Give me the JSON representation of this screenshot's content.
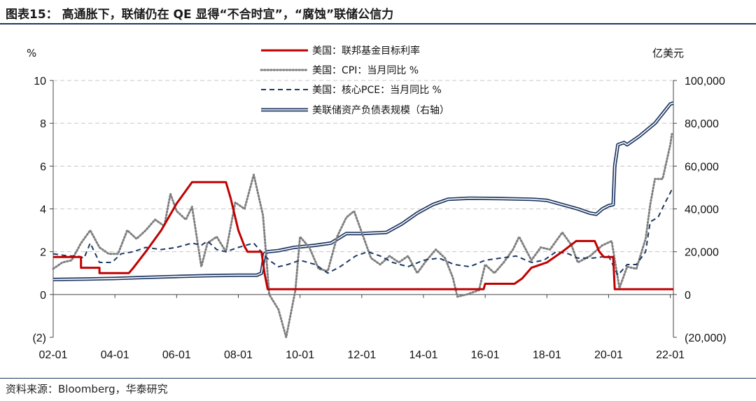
{
  "header": {
    "title": "图表15：   高通胀下，联储仍在 QE 显得“不合时宜”，“腐蚀”联储公信力"
  },
  "footer": {
    "source": "资料来源：Bloomberg，华泰研究"
  },
  "colors": {
    "fed_rate": "#c00000",
    "cpi": "#7f7f7f",
    "core_pce": "#1f3864",
    "balance": "#1f3864",
    "grid": "#c8c8c8"
  },
  "chart_data": {
    "type": "line",
    "title": "高通胀下，联储仍在 QE 显得“不合时宜”，“腐蚀”联储公信力",
    "ylabel_left": "%",
    "ylabel_right": "亿美元",
    "ylim_left": [
      -2,
      10
    ],
    "ylim_right": [
      -20000,
      100000
    ],
    "xlim": [
      2002.0,
      2022.1
    ],
    "x_tick_labels": [
      "02-01",
      "04-01",
      "06-01",
      "08-01",
      "10-01",
      "12-01",
      "14-01",
      "16-01",
      "18-01",
      "20-01",
      "22-01"
    ],
    "x_tick_values": [
      2002,
      2004,
      2006,
      2008,
      2010,
      2012,
      2014,
      2016,
      2018,
      2020,
      2022
    ],
    "y_left_tick_labels": [
      "(2)",
      "0",
      "2",
      "4",
      "6",
      "8",
      "10"
    ],
    "y_left_tick_values": [
      -2,
      0,
      2,
      4,
      6,
      8,
      10
    ],
    "y_right_tick_labels": [
      "(20,000)",
      "0",
      "20,000",
      "40,000",
      "60,000",
      "80,000",
      "100,000"
    ],
    "y_right_tick_values": [
      -20000,
      0,
      20000,
      40000,
      60000,
      80000,
      100000
    ],
    "legend_position": "top-center",
    "series": [
      {
        "name": "美国：联邦基金目标利率",
        "axis": "left",
        "style": "solid",
        "points": [
          [
            2002.0,
            1.75
          ],
          [
            2002.9,
            1.75
          ],
          [
            2002.9,
            1.25
          ],
          [
            2003.5,
            1.25
          ],
          [
            2003.5,
            1.0
          ],
          [
            2004.45,
            1.0
          ],
          [
            2004.6,
            1.25
          ],
          [
            2005.0,
            2.0
          ],
          [
            2005.5,
            3.0
          ],
          [
            2006.0,
            4.25
          ],
          [
            2006.5,
            5.25
          ],
          [
            2007.6,
            5.25
          ],
          [
            2007.75,
            4.5
          ],
          [
            2008.0,
            3.0
          ],
          [
            2008.2,
            2.25
          ],
          [
            2008.3,
            2.0
          ],
          [
            2008.75,
            2.0
          ],
          [
            2008.85,
            1.0
          ],
          [
            2008.95,
            0.25
          ],
          [
            2015.95,
            0.25
          ],
          [
            2016.0,
            0.5
          ],
          [
            2016.95,
            0.5
          ],
          [
            2017.2,
            0.75
          ],
          [
            2017.5,
            1.25
          ],
          [
            2018.0,
            1.5
          ],
          [
            2018.5,
            2.0
          ],
          [
            2018.95,
            2.5
          ],
          [
            2019.55,
            2.5
          ],
          [
            2019.7,
            2.0
          ],
          [
            2019.85,
            1.75
          ],
          [
            2020.15,
            1.75
          ],
          [
            2020.2,
            0.25
          ],
          [
            2022.1,
            0.25
          ]
        ]
      },
      {
        "name": "美国：CPI：当月同比 %",
        "axis": "left",
        "style": "dotted",
        "points": [
          [
            2002.0,
            1.2
          ],
          [
            2002.3,
            1.5
          ],
          [
            2002.6,
            1.6
          ],
          [
            2002.9,
            2.4
          ],
          [
            2003.2,
            3.0
          ],
          [
            2003.5,
            2.2
          ],
          [
            2003.8,
            1.9
          ],
          [
            2004.1,
            1.9
          ],
          [
            2004.4,
            3.0
          ],
          [
            2004.7,
            2.6
          ],
          [
            2005.0,
            3.0
          ],
          [
            2005.3,
            3.5
          ],
          [
            2005.6,
            3.2
          ],
          [
            2005.8,
            4.7
          ],
          [
            2006.0,
            3.9
          ],
          [
            2006.3,
            3.5
          ],
          [
            2006.5,
            4.1
          ],
          [
            2006.8,
            1.3
          ],
          [
            2007.0,
            2.4
          ],
          [
            2007.3,
            2.7
          ],
          [
            2007.6,
            2.0
          ],
          [
            2007.9,
            4.3
          ],
          [
            2008.2,
            4.0
          ],
          [
            2008.5,
            5.6
          ],
          [
            2008.8,
            3.7
          ],
          [
            2009.0,
            0.0
          ],
          [
            2009.3,
            -0.7
          ],
          [
            2009.55,
            -2.0
          ],
          [
            2009.85,
            0.2
          ],
          [
            2010.0,
            2.7
          ],
          [
            2010.3,
            2.2
          ],
          [
            2010.6,
            1.2
          ],
          [
            2010.9,
            1.1
          ],
          [
            2011.2,
            2.7
          ],
          [
            2011.5,
            3.6
          ],
          [
            2011.75,
            3.9
          ],
          [
            2012.0,
            2.9
          ],
          [
            2012.3,
            1.7
          ],
          [
            2012.6,
            1.4
          ],
          [
            2012.9,
            1.8
          ],
          [
            2013.2,
            1.5
          ],
          [
            2013.5,
            1.8
          ],
          [
            2013.8,
            1.0
          ],
          [
            2014.1,
            1.6
          ],
          [
            2014.4,
            2.1
          ],
          [
            2014.7,
            1.7
          ],
          [
            2014.95,
            0.8
          ],
          [
            2015.1,
            -0.1
          ],
          [
            2015.4,
            0.0
          ],
          [
            2015.8,
            0.2
          ],
          [
            2016.0,
            1.4
          ],
          [
            2016.3,
            1.0
          ],
          [
            2016.6,
            1.5
          ],
          [
            2016.9,
            2.1
          ],
          [
            2017.1,
            2.7
          ],
          [
            2017.5,
            1.6
          ],
          [
            2017.8,
            2.2
          ],
          [
            2018.1,
            2.1
          ],
          [
            2018.5,
            2.9
          ],
          [
            2018.8,
            2.3
          ],
          [
            2019.0,
            1.5
          ],
          [
            2019.4,
            1.8
          ],
          [
            2019.8,
            2.3
          ],
          [
            2020.1,
            2.5
          ],
          [
            2020.35,
            0.3
          ],
          [
            2020.6,
            1.3
          ],
          [
            2020.9,
            1.2
          ],
          [
            2021.2,
            2.6
          ],
          [
            2021.35,
            4.2
          ],
          [
            2021.5,
            5.4
          ],
          [
            2021.75,
            5.4
          ],
          [
            2022.0,
            7.0
          ],
          [
            2022.05,
            7.5
          ]
        ]
      },
      {
        "name": "美国：核心PCE：当月同比 %",
        "axis": "left",
        "style": "dashed",
        "points": [
          [
            2002.0,
            1.9
          ],
          [
            2002.5,
            1.8
          ],
          [
            2002.8,
            1.8
          ],
          [
            2003.0,
            1.7
          ],
          [
            2003.2,
            2.4
          ],
          [
            2003.5,
            1.5
          ],
          [
            2003.9,
            1.5
          ],
          [
            2004.2,
            1.9
          ],
          [
            2004.6,
            2.0
          ],
          [
            2005.0,
            2.2
          ],
          [
            2005.5,
            2.1
          ],
          [
            2006.0,
            2.2
          ],
          [
            2006.5,
            2.4
          ],
          [
            2006.8,
            2.3
          ],
          [
            2007.0,
            2.5
          ],
          [
            2007.3,
            2.1
          ],
          [
            2007.6,
            2.0
          ],
          [
            2008.0,
            2.2
          ],
          [
            2008.5,
            2.4
          ],
          [
            2008.8,
            1.9
          ],
          [
            2009.0,
            1.6
          ],
          [
            2009.3,
            1.3
          ],
          [
            2009.6,
            1.4
          ],
          [
            2010.0,
            1.6
          ],
          [
            2010.5,
            1.4
          ],
          [
            2010.9,
            1.0
          ],
          [
            2011.3,
            1.3
          ],
          [
            2011.8,
            1.8
          ],
          [
            2012.2,
            2.0
          ],
          [
            2012.6,
            1.8
          ],
          [
            2013.0,
            1.5
          ],
          [
            2013.5,
            1.3
          ],
          [
            2014.0,
            1.6
          ],
          [
            2014.5,
            1.7
          ],
          [
            2015.0,
            1.4
          ],
          [
            2015.5,
            1.3
          ],
          [
            2016.0,
            1.6
          ],
          [
            2016.5,
            1.7
          ],
          [
            2017.0,
            1.8
          ],
          [
            2017.5,
            1.5
          ],
          [
            2017.9,
            1.6
          ],
          [
            2018.3,
            2.0
          ],
          [
            2018.7,
            1.9
          ],
          [
            2019.0,
            1.7
          ],
          [
            2019.5,
            1.7
          ],
          [
            2020.0,
            1.8
          ],
          [
            2020.3,
            0.9
          ],
          [
            2020.6,
            1.4
          ],
          [
            2020.9,
            1.4
          ],
          [
            2021.2,
            2.0
          ],
          [
            2021.35,
            3.4
          ],
          [
            2021.6,
            3.6
          ],
          [
            2021.8,
            4.2
          ],
          [
            2022.05,
            4.9
          ]
        ]
      },
      {
        "name": "美联储资产负债表规模（右轴）",
        "axis": "right",
        "style": "double",
        "points": [
          [
            2002.0,
            7000
          ],
          [
            2003.0,
            7200
          ],
          [
            2004.0,
            7500
          ],
          [
            2005.0,
            8000
          ],
          [
            2006.0,
            8400
          ],
          [
            2007.0,
            8800
          ],
          [
            2008.0,
            9000
          ],
          [
            2008.6,
            9000
          ],
          [
            2008.75,
            10000
          ],
          [
            2008.85,
            19000
          ],
          [
            2008.95,
            20000
          ],
          [
            2009.3,
            20500
          ],
          [
            2009.8,
            22000
          ],
          [
            2010.5,
            23000
          ],
          [
            2011.0,
            24000
          ],
          [
            2011.5,
            28500
          ],
          [
            2012.0,
            28500
          ],
          [
            2012.8,
            29000
          ],
          [
            2013.3,
            33000
          ],
          [
            2013.8,
            38000
          ],
          [
            2014.3,
            42000
          ],
          [
            2014.8,
            44500
          ],
          [
            2015.5,
            45000
          ],
          [
            2016.5,
            44800
          ],
          [
            2017.5,
            44500
          ],
          [
            2018.0,
            44000
          ],
          [
            2018.5,
            42000
          ],
          [
            2019.0,
            40000
          ],
          [
            2019.4,
            38000
          ],
          [
            2019.6,
            37500
          ],
          [
            2019.8,
            40000
          ],
          [
            2020.0,
            41500
          ],
          [
            2020.15,
            42000
          ],
          [
            2020.2,
            60000
          ],
          [
            2020.3,
            70000
          ],
          [
            2020.5,
            71000
          ],
          [
            2020.6,
            70000
          ],
          [
            2021.0,
            74000
          ],
          [
            2021.5,
            80000
          ],
          [
            2022.0,
            89000
          ],
          [
            2022.1,
            89500
          ]
        ]
      }
    ]
  }
}
